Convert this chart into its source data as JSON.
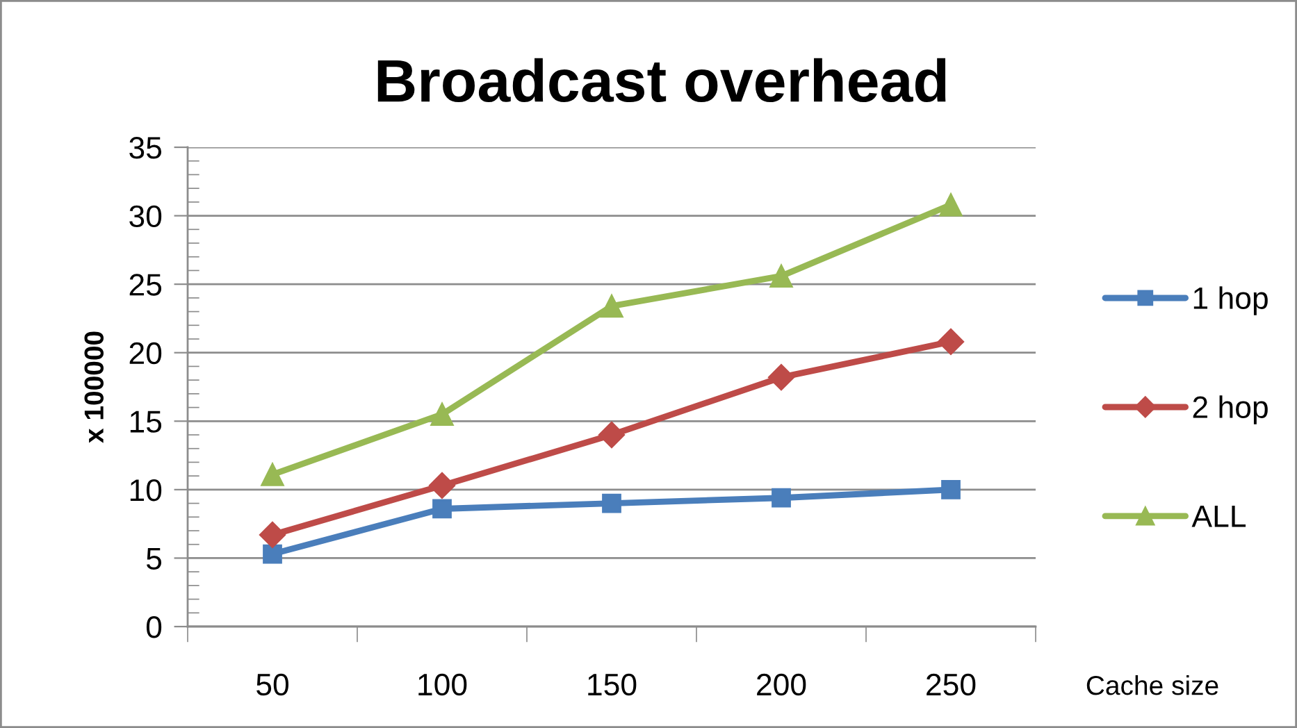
{
  "chart_data": {
    "type": "line",
    "title": "Broadcast overhead",
    "ylabel": "x 100000",
    "xlabel": "Cache size",
    "categories": [
      "50",
      "100",
      "150",
      "200",
      "250"
    ],
    "series": [
      {
        "name": "1 hop",
        "color": "#4a7ebb",
        "marker": "square",
        "values": [
          5.3,
          8.6,
          9.0,
          9.4,
          10.0
        ]
      },
      {
        "name": "2 hop",
        "color": "#be4b48",
        "marker": "diamond",
        "values": [
          6.7,
          10.3,
          14.0,
          18.2,
          20.8
        ]
      },
      {
        "name": "ALL",
        "color": "#98b954",
        "marker": "triangle",
        "values": [
          11.1,
          15.5,
          23.4,
          25.6,
          30.8
        ]
      }
    ],
    "ylim": [
      0,
      35
    ],
    "yticks": [
      0,
      5,
      10,
      15,
      20,
      25,
      30,
      35
    ],
    "grid": "y",
    "legend": "right",
    "line_style": "solid"
  }
}
